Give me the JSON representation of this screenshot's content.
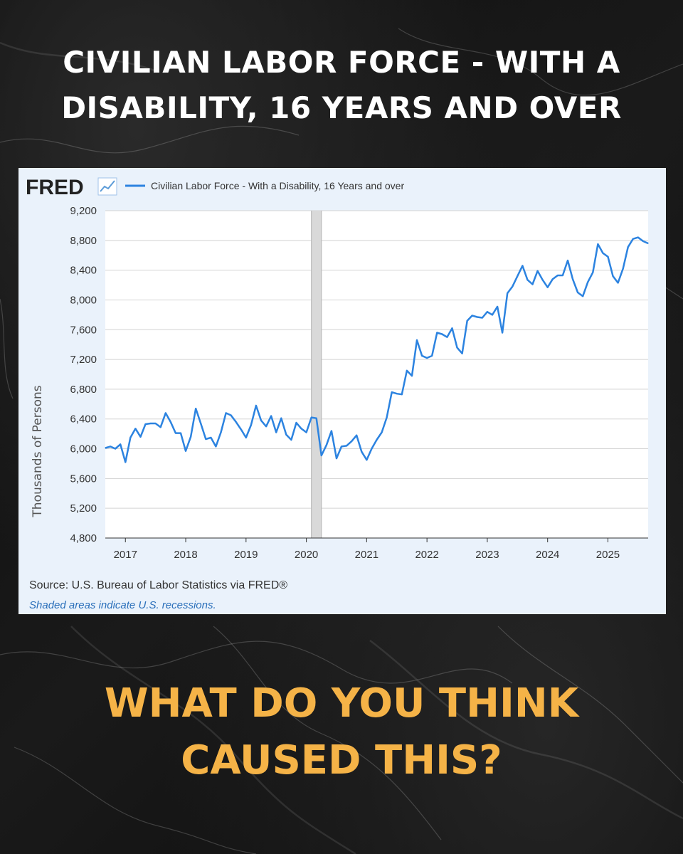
{
  "headline": {
    "line1": "CIVILIAN LABOR FORCE - WITH A",
    "line2": "DISABILITY, 16 YEARS AND OVER"
  },
  "question": {
    "line1": "WHAT DO YOU THINK",
    "line2": "CAUSED THIS?"
  },
  "colors": {
    "headline": "#ffffff",
    "question": "#f5b347",
    "series": "#2c83e0",
    "card_background": "#eaf2fb",
    "plot_background": "#ffffff",
    "recession_shade": "#d9d9d9"
  },
  "chart_data": {
    "type": "line",
    "logo": "FRED",
    "legend": "Civilian Labor Force - With a Disability, 16 Years and over",
    "legend_position": "top",
    "ylabel": "Thousands of Persons",
    "ylim": [
      4800,
      9200
    ],
    "yticks": [
      9200,
      8800,
      8400,
      8000,
      7600,
      7200,
      6800,
      6400,
      6000,
      5600,
      5200,
      4800
    ],
    "ytick_labels": [
      "9,200",
      "8,800",
      "8,400",
      "8,000",
      "7,600",
      "7,200",
      "6,800",
      "6,400",
      "6,000",
      "5,600",
      "5,200",
      "4,800"
    ],
    "xlim": [
      "2016-09",
      "2025-09"
    ],
    "xticks": [
      "2017",
      "2018",
      "2019",
      "2020",
      "2021",
      "2022",
      "2023",
      "2024",
      "2025"
    ],
    "grid": true,
    "recession": {
      "start": "2020-02",
      "end": "2020-04"
    },
    "source": "Source: U.S. Bureau of Labor Statistics via FRED®",
    "note": "Shaded areas indicate U.S. recessions.",
    "series": [
      {
        "name": "Civilian Labor Force - With a Disability, 16 Years and over",
        "start": "2016-09",
        "frequency": "monthly",
        "values": [
          6010,
          6030,
          6000,
          6060,
          5820,
          6150,
          6270,
          6160,
          6330,
          6340,
          6340,
          6290,
          6480,
          6360,
          6210,
          6210,
          5970,
          6160,
          6540,
          6340,
          6130,
          6150,
          6030,
          6220,
          6480,
          6450,
          6360,
          6260,
          6150,
          6320,
          6580,
          6380,
          6300,
          6440,
          6220,
          6410,
          6190,
          6120,
          6350,
          6270,
          6220,
          6420,
          6410,
          5910,
          6050,
          6240,
          5870,
          6030,
          6040,
          6100,
          6180,
          5960,
          5850,
          6000,
          6120,
          6220,
          6420,
          6760,
          6740,
          6730,
          7050,
          6980,
          7460,
          7250,
          7220,
          7250,
          7560,
          7540,
          7500,
          7620,
          7360,
          7280,
          7720,
          7790,
          7770,
          7760,
          7840,
          7800,
          7910,
          7560,
          8090,
          8180,
          8320,
          8460,
          8270,
          8210,
          8390,
          8270,
          8170,
          8280,
          8330,
          8330,
          8530,
          8280,
          8100,
          8050,
          8240,
          8370,
          8750,
          8630,
          8580,
          8320,
          8230,
          8420,
          8710,
          8820,
          8840,
          8790,
          8760
        ]
      }
    ]
  }
}
